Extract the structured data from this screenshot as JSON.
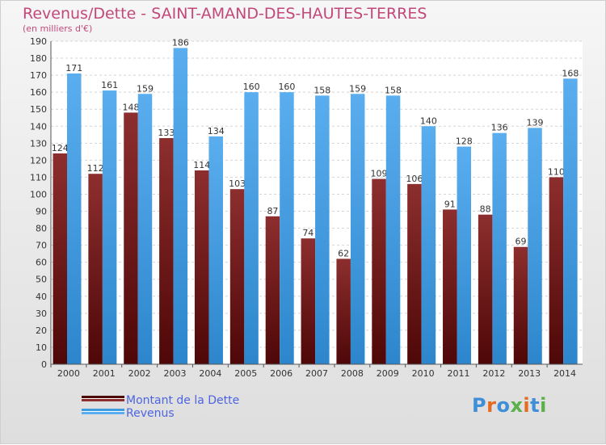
{
  "title": "Revenus/Dette - SAINT-AMAND-DES-HAUTES-TERRES",
  "unit_label": "(en milliers d'€)",
  "logo_text": "Proxiti",
  "legend": [
    {
      "label": "Montant de la Dette",
      "color": "#7a1d1d"
    },
    {
      "label": "Revenus",
      "color": "#3e9be0"
    }
  ],
  "chart_data": {
    "type": "bar",
    "categories": [
      "2000",
      "2001",
      "2002",
      "2003",
      "2004",
      "2005",
      "2006",
      "2007",
      "2008",
      "2009",
      "2010",
      "2011",
      "2012",
      "2013",
      "2014"
    ],
    "series": [
      {
        "name": "Montant de la Dette",
        "color": "#7a1d1d",
        "values": [
          124,
          112,
          148,
          133,
          114,
          103,
          87,
          74,
          62,
          109,
          106,
          91,
          88,
          69,
          110
        ]
      },
      {
        "name": "Revenus",
        "color": "#3e9be0",
        "values": [
          171,
          161,
          159,
          186,
          134,
          160,
          160,
          158,
          159,
          158,
          140,
          128,
          136,
          139,
          168
        ]
      }
    ],
    "ylim": [
      0,
      190
    ],
    "ytick_step": 10,
    "grid": true,
    "legend_position": "bottom-left"
  }
}
